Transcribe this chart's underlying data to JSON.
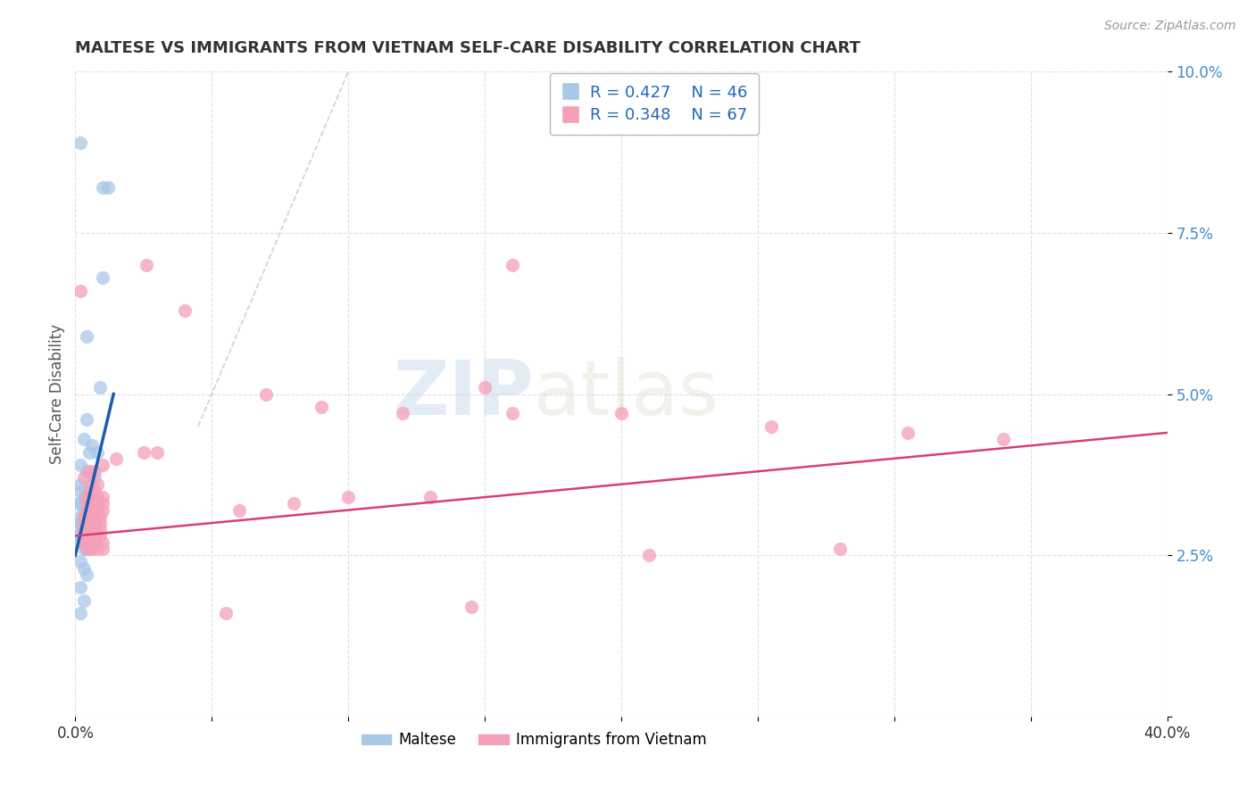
{
  "title": "MALTESE VS IMMIGRANTS FROM VIETNAM SELF-CARE DISABILITY CORRELATION CHART",
  "source": "Source: ZipAtlas.com",
  "ylabel": "Self-Care Disability",
  "xlim": [
    0.0,
    0.4
  ],
  "ylim": [
    0.0,
    0.1
  ],
  "xticks": [
    0.0,
    0.05,
    0.1,
    0.15,
    0.2,
    0.25,
    0.3,
    0.35,
    0.4
  ],
  "yticks": [
    0.0,
    0.025,
    0.05,
    0.075,
    0.1
  ],
  "ytick_labels": [
    "",
    "2.5%",
    "5.0%",
    "7.5%",
    "10.0%"
  ],
  "xtick_labels": [
    "0.0%",
    "",
    "",
    "",
    "",
    "",
    "",
    "",
    "40.0%"
  ],
  "maltese_color": "#a8c8e8",
  "vietnam_color": "#f4a0b8",
  "maltese_line_color": "#1a5cb0",
  "vietnam_line_color": "#d84070",
  "diagonal_color": "#c0c8d0",
  "watermark_zip": "ZIP",
  "watermark_atlas": "atlas",
  "maltese_label": "Maltese",
  "vietnam_label": "Immigrants from Vietnam",
  "maltese_scatter": [
    [
      0.002,
      0.089
    ],
    [
      0.01,
      0.082
    ],
    [
      0.012,
      0.082
    ],
    [
      0.01,
      0.068
    ],
    [
      0.004,
      0.059
    ],
    [
      0.009,
      0.051
    ],
    [
      0.004,
      0.046
    ],
    [
      0.003,
      0.043
    ],
    [
      0.006,
      0.042
    ],
    [
      0.005,
      0.041
    ],
    [
      0.008,
      0.041
    ],
    [
      0.002,
      0.039
    ],
    [
      0.004,
      0.038
    ],
    [
      0.007,
      0.037
    ],
    [
      0.002,
      0.036
    ],
    [
      0.002,
      0.035
    ],
    [
      0.003,
      0.034
    ],
    [
      0.005,
      0.034
    ],
    [
      0.001,
      0.033
    ],
    [
      0.002,
      0.033
    ],
    [
      0.003,
      0.032
    ],
    [
      0.004,
      0.032
    ],
    [
      0.002,
      0.031
    ],
    [
      0.003,
      0.031
    ],
    [
      0.002,
      0.03
    ],
    [
      0.002,
      0.03
    ],
    [
      0.003,
      0.03
    ],
    [
      0.004,
      0.03
    ],
    [
      0.002,
      0.029
    ],
    [
      0.003,
      0.029
    ],
    [
      0.001,
      0.028
    ],
    [
      0.002,
      0.028
    ],
    [
      0.002,
      0.028
    ],
    [
      0.003,
      0.028
    ],
    [
      0.004,
      0.028
    ],
    [
      0.002,
      0.027
    ],
    [
      0.003,
      0.027
    ],
    [
      0.003,
      0.026
    ],
    [
      0.004,
      0.026
    ],
    [
      0.005,
      0.026
    ],
    [
      0.002,
      0.024
    ],
    [
      0.003,
      0.023
    ],
    [
      0.004,
      0.022
    ],
    [
      0.002,
      0.02
    ],
    [
      0.003,
      0.018
    ],
    [
      0.002,
      0.016
    ]
  ],
  "vietnam_scatter": [
    [
      0.002,
      0.066
    ],
    [
      0.026,
      0.07
    ],
    [
      0.04,
      0.063
    ],
    [
      0.16,
      0.07
    ],
    [
      0.003,
      0.037
    ],
    [
      0.005,
      0.038
    ],
    [
      0.007,
      0.038
    ],
    [
      0.01,
      0.039
    ],
    [
      0.015,
      0.04
    ],
    [
      0.025,
      0.041
    ],
    [
      0.03,
      0.041
    ],
    [
      0.006,
      0.036
    ],
    [
      0.008,
      0.036
    ],
    [
      0.005,
      0.035
    ],
    [
      0.007,
      0.035
    ],
    [
      0.004,
      0.034
    ],
    [
      0.006,
      0.034
    ],
    [
      0.008,
      0.034
    ],
    [
      0.01,
      0.034
    ],
    [
      0.004,
      0.033
    ],
    [
      0.006,
      0.033
    ],
    [
      0.008,
      0.033
    ],
    [
      0.01,
      0.033
    ],
    [
      0.004,
      0.032
    ],
    [
      0.006,
      0.032
    ],
    [
      0.008,
      0.032
    ],
    [
      0.01,
      0.032
    ],
    [
      0.003,
      0.031
    ],
    [
      0.005,
      0.031
    ],
    [
      0.007,
      0.031
    ],
    [
      0.009,
      0.031
    ],
    [
      0.003,
      0.03
    ],
    [
      0.005,
      0.03
    ],
    [
      0.007,
      0.03
    ],
    [
      0.009,
      0.03
    ],
    [
      0.003,
      0.029
    ],
    [
      0.005,
      0.029
    ],
    [
      0.007,
      0.029
    ],
    [
      0.009,
      0.029
    ],
    [
      0.003,
      0.028
    ],
    [
      0.005,
      0.028
    ],
    [
      0.007,
      0.028
    ],
    [
      0.009,
      0.028
    ],
    [
      0.003,
      0.027
    ],
    [
      0.005,
      0.027
    ],
    [
      0.007,
      0.027
    ],
    [
      0.01,
      0.027
    ],
    [
      0.004,
      0.026
    ],
    [
      0.006,
      0.026
    ],
    [
      0.008,
      0.026
    ],
    [
      0.01,
      0.026
    ],
    [
      0.07,
      0.05
    ],
    [
      0.09,
      0.048
    ],
    [
      0.12,
      0.047
    ],
    [
      0.16,
      0.047
    ],
    [
      0.2,
      0.047
    ],
    [
      0.255,
      0.045
    ],
    [
      0.305,
      0.044
    ],
    [
      0.34,
      0.043
    ],
    [
      0.15,
      0.051
    ],
    [
      0.06,
      0.032
    ],
    [
      0.08,
      0.033
    ],
    [
      0.1,
      0.034
    ],
    [
      0.13,
      0.034
    ],
    [
      0.28,
      0.026
    ],
    [
      0.21,
      0.025
    ],
    [
      0.055,
      0.016
    ],
    [
      0.145,
      0.017
    ]
  ],
  "maltese_line_x": [
    0.0,
    0.014
  ],
  "maltese_line_y": [
    0.025,
    0.05
  ],
  "vietnam_line_x": [
    0.0,
    0.4
  ],
  "vietnam_line_y": [
    0.028,
    0.044
  ],
  "diagonal_line_x": [
    0.045,
    0.1
  ],
  "diagonal_line_y": [
    0.045,
    0.1
  ]
}
